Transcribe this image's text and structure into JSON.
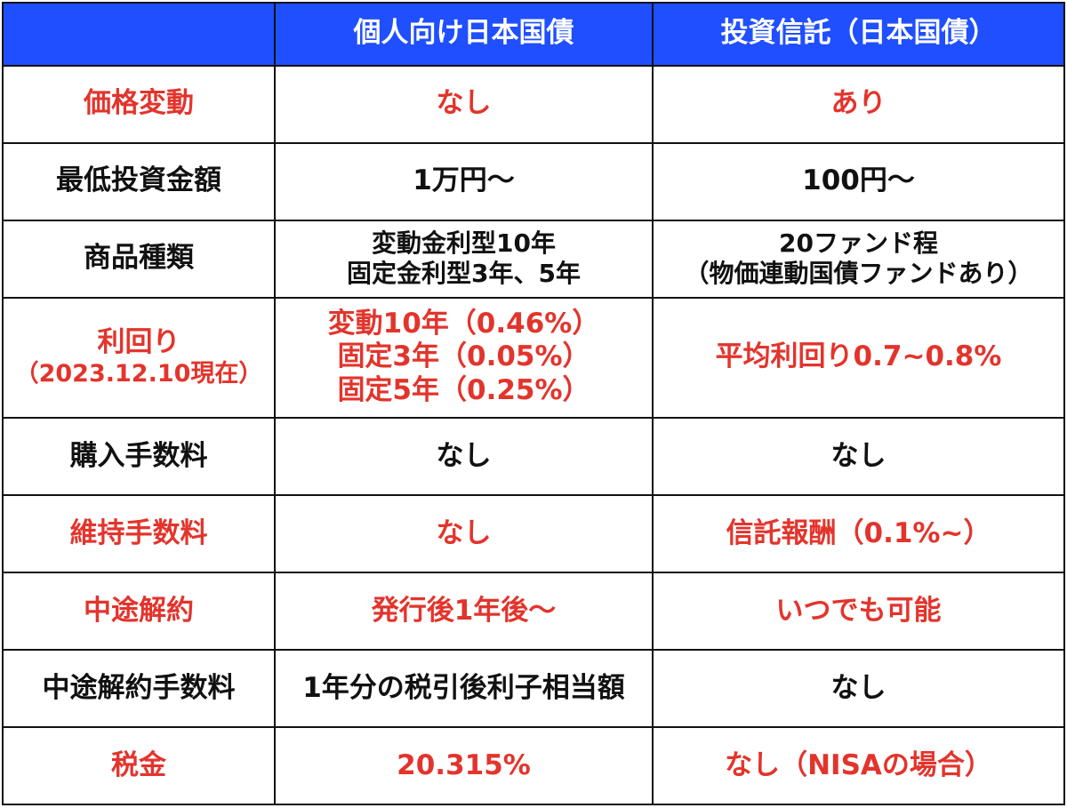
{
  "header": {
    "col1": "",
    "col2": "個人向け日本国債",
    "col3": "投資信託（日本国債）"
  },
  "rows": [
    {
      "label": "価格変動",
      "jgb": "なし",
      "fund": "あり",
      "color": "#e3342c"
    },
    {
      "label": "最低投資金額",
      "jgb": "1万円～",
      "fund": "100円～",
      "color": "#111111"
    },
    {
      "label": "商品種類",
      "jgb_lines": [
        "変動金利型10年",
        "固定金利型3年、5年"
      ],
      "fund_lines": [
        "20ファンド程",
        "（物価連動国債ファンドあり）"
      ],
      "color": "#111111"
    },
    {
      "label": "利回り",
      "label_sub": "（2023.12.10現在）",
      "jgb_lines": [
        "変動10年（0.46%）",
        "固定3年（0.05%）",
        "固定5年（0.25%）"
      ],
      "fund": "平均利回り0.7~0.8%",
      "color": "#e3342c"
    },
    {
      "label": "購入手数料",
      "jgb": "なし",
      "fund": "なし",
      "color": "#111111"
    },
    {
      "label": "維持手数料",
      "jgb": "なし",
      "fund": "信託報酬（0.1%~）",
      "color": "#e3342c"
    },
    {
      "label": "中途解約",
      "jgb": "発行後1年後～",
      "fund": "いつでも可能",
      "color": "#e3342c"
    },
    {
      "label": "中途解約手数料",
      "jgb": "1年分の税引後利子相当額",
      "fund": "なし",
      "color": "#111111"
    },
    {
      "label": "税金",
      "jgb": "20.315%",
      "fund": "なし（NISAの場合）",
      "color": "#e3342c"
    }
  ],
  "colors": {
    "header_bg": "#1f4fff",
    "header_text": "#ffffff",
    "accent_red": "#e3342c",
    "text_black": "#111111"
  }
}
